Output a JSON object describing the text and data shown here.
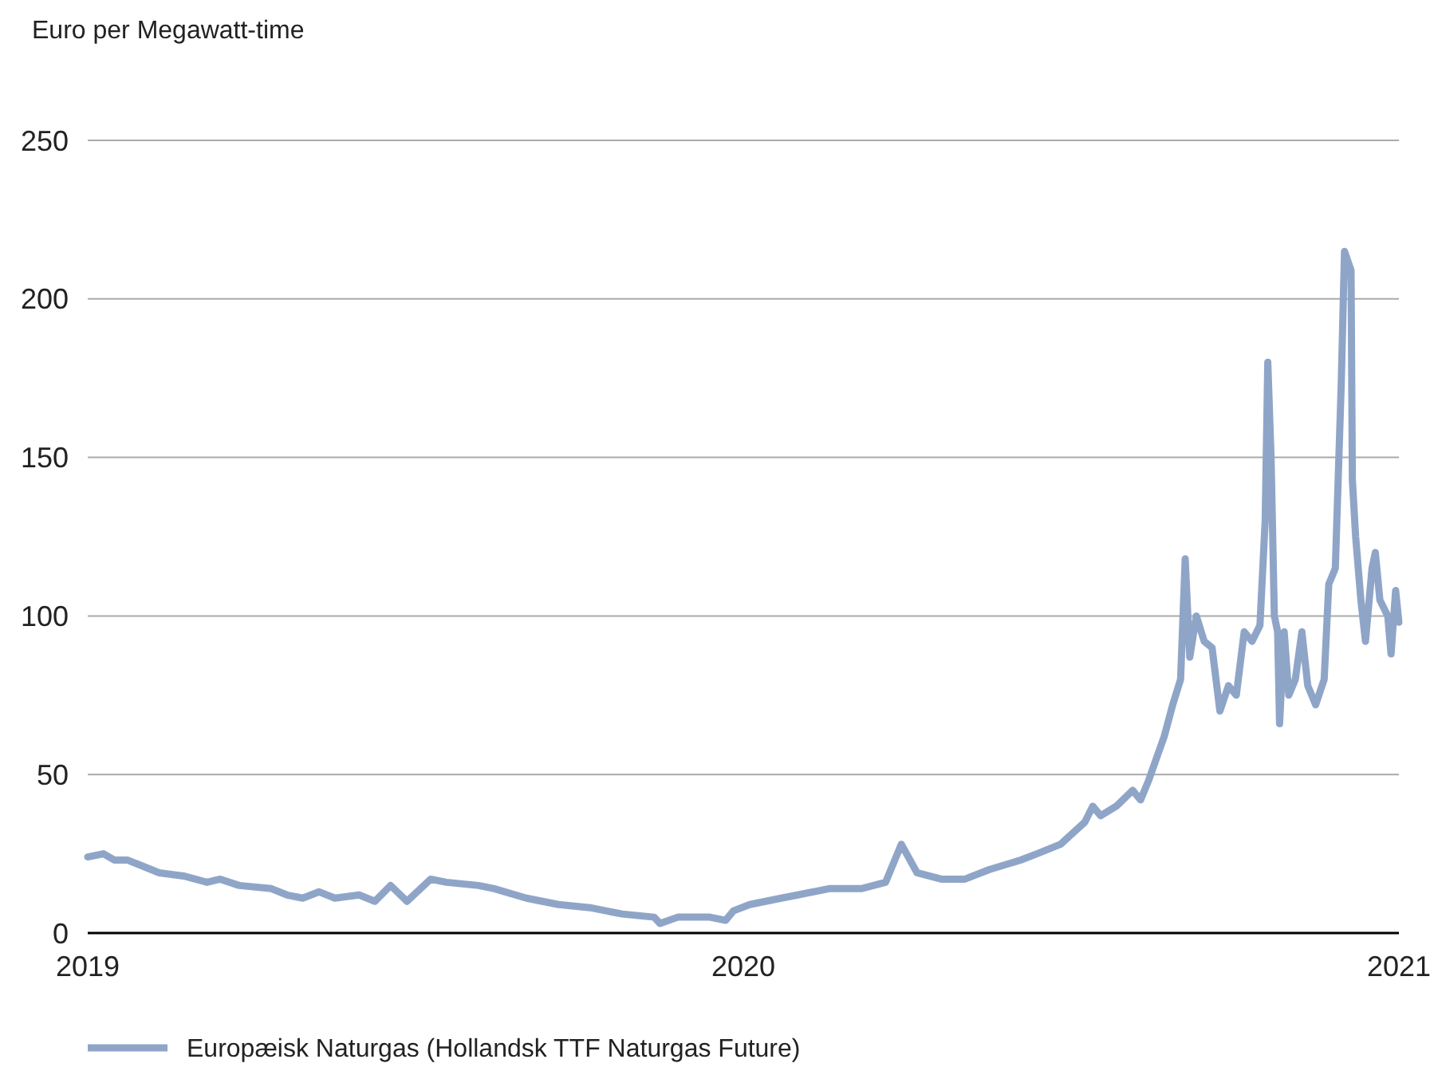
{
  "chart_data": {
    "type": "line",
    "ylabel": "Euro per Megawatt-time",
    "x": [
      2019,
      2019.024,
      2019.041,
      2019.061,
      2019.085,
      2019.109,
      2019.146,
      2019.182,
      2019.202,
      2019.231,
      2019.28,
      2019.304,
      2019.328,
      2019.353,
      2019.377,
      2019.414,
      2019.438,
      2019.462,
      2019.487,
      2019.523,
      2019.547,
      2019.596,
      2019.62,
      2019.669,
      2019.718,
      2019.766,
      2019.815,
      2019.864,
      2019.873,
      2019.9,
      2019.949,
      2019.973,
      2019.985,
      2020.01,
      2020.058,
      2020.083,
      2020.131,
      2020.18,
      2020.217,
      2020.241,
      2020.265,
      2020.302,
      2020.338,
      2020.375,
      2020.423,
      2020.448,
      2020.484,
      2020.521,
      2020.533,
      2020.545,
      2020.569,
      2020.594,
      2020.606,
      2020.618,
      2020.63,
      2020.642,
      2020.655,
      2020.667,
      2020.674,
      2020.681,
      2020.691,
      2020.703,
      2020.715,
      2020.727,
      2020.74,
      2020.752,
      2020.764,
      2020.776,
      2020.788,
      2020.796,
      2020.8,
      2020.805,
      2020.81,
      2020.815,
      2020.818,
      2020.825,
      2020.832,
      2020.842,
      2020.852,
      2020.861,
      2020.873,
      2020.886,
      2020.893,
      2020.903,
      2020.912,
      2020.917,
      2020.927,
      2020.929,
      2020.934,
      2020.942,
      2020.949,
      2020.959,
      2020.964,
      2020.971,
      2020.983,
      2020.988,
      2020.995,
      2021
    ],
    "series": [
      {
        "name": "Europæisk Naturgas (Hollandsk TTF Naturgas Future)",
        "color": "#8fa5c8",
        "values": [
          24,
          25,
          23,
          23,
          21,
          19,
          18,
          16,
          17,
          15,
          14,
          12,
          11,
          13,
          11,
          12,
          10,
          15,
          10,
          17,
          16,
          15,
          14,
          11,
          9,
          8,
          6,
          5,
          3,
          5,
          5,
          4,
          7,
          9,
          11,
          12,
          14,
          14,
          16,
          28,
          19,
          17,
          17,
          20,
          23,
          25,
          28,
          35,
          40,
          37,
          40,
          45,
          42,
          48,
          55,
          62,
          72,
          80,
          118,
          87,
          100,
          92,
          90,
          70,
          78,
          75,
          95,
          92,
          97,
          130,
          180,
          150,
          100,
          95,
          66,
          95,
          75,
          80,
          95,
          78,
          72,
          80,
          110,
          115,
          173,
          215,
          209,
          143,
          125,
          105,
          92,
          115,
          120,
          105,
          100,
          88,
          108,
          98
        ]
      }
    ],
    "xlim": [
      2019,
      2021
    ],
    "xticks": [
      2019,
      2020,
      2021
    ],
    "ylim": [
      0,
      250
    ],
    "yticks": [
      0,
      50,
      100,
      150,
      200,
      250
    ],
    "grid": "y",
    "legend": "bottom left",
    "line_style": "solid",
    "marker": "none"
  }
}
